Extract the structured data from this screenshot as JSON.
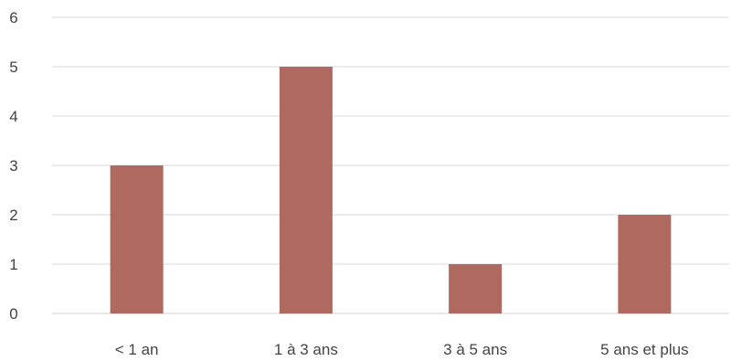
{
  "chart_data": {
    "type": "bar",
    "title": "",
    "xlabel": "",
    "ylabel": "",
    "categories": [
      "< 1 an",
      "1 à 3 ans",
      "3 à 5 ans",
      "5 ans et plus"
    ],
    "values": [
      3,
      5,
      1,
      2
    ],
    "ylim": [
      0,
      6
    ],
    "yticks": [
      "0",
      "1",
      "2",
      "3",
      "4",
      "5",
      "6"
    ],
    "grid": true,
    "legend": "none",
    "bar_color": "#b0695e"
  }
}
